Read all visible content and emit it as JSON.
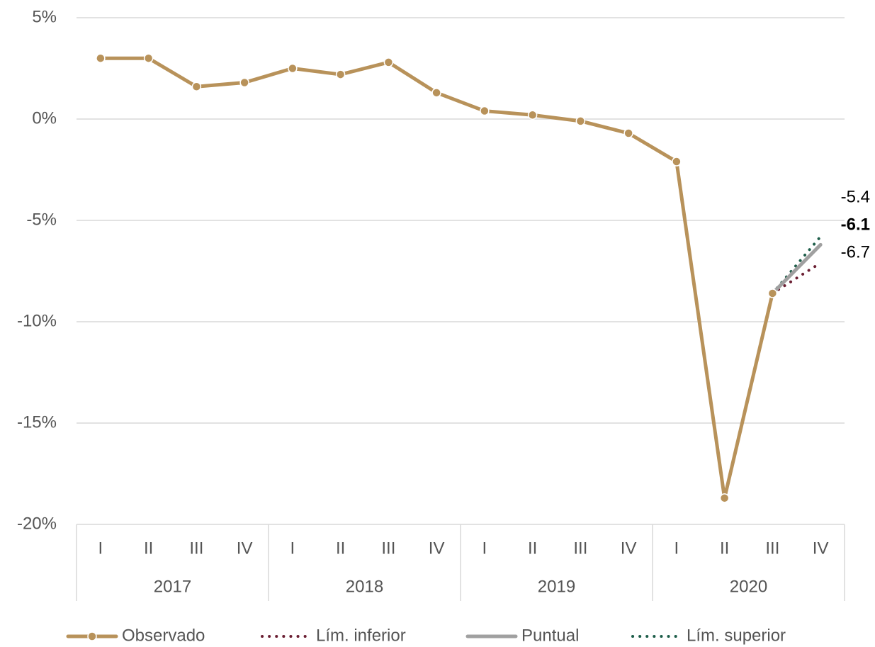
{
  "chart_data": {
    "type": "line",
    "categories": [
      "I",
      "II",
      "III",
      "IV",
      "I",
      "II",
      "III",
      "IV",
      "I",
      "II",
      "III",
      "IV",
      "I",
      "II",
      "III",
      "IV"
    ],
    "years": [
      "2017",
      "2018",
      "2019",
      "2020"
    ],
    "series": [
      {
        "name": "Observado",
        "color": "#b8925a",
        "style": "solid",
        "markers": true,
        "values": [
          3.0,
          3.0,
          1.6,
          1.8,
          2.5,
          2.2,
          2.8,
          1.3,
          0.4,
          0.2,
          -0.1,
          -0.7,
          -2.1,
          -18.7,
          -8.6,
          null
        ]
      },
      {
        "name": "Lím. inferior",
        "color": "#6b1f33",
        "style": "dotted",
        "markers": false,
        "values": [
          null,
          null,
          null,
          null,
          null,
          null,
          null,
          null,
          null,
          null,
          null,
          null,
          null,
          null,
          -8.6,
          -7.1
        ]
      },
      {
        "name": "Puntual",
        "color": "#a0a0a0",
        "style": "solid",
        "markers": false,
        "values": [
          null,
          null,
          null,
          null,
          null,
          null,
          null,
          null,
          null,
          null,
          null,
          null,
          null,
          null,
          -8.6,
          -6.2
        ]
      },
      {
        "name": "Lím. superior",
        "color": "#1e5e4a",
        "style": "dotted",
        "markers": false,
        "values": [
          null,
          null,
          null,
          null,
          null,
          null,
          null,
          null,
          null,
          null,
          null,
          null,
          null,
          null,
          -8.6,
          -5.8
        ]
      }
    ],
    "annotations": [
      "-5.4",
      "-6.1",
      "-6.7"
    ],
    "ylim": [
      -20,
      5
    ],
    "yticks": [
      {
        "value": -20,
        "label": "-20%"
      },
      {
        "value": -15,
        "label": "-15%"
      },
      {
        "value": -10,
        "label": "-10%"
      },
      {
        "value": -5,
        "label": "-5%"
      },
      {
        "value": 0,
        "label": "0%"
      },
      {
        "value": 5,
        "label": "5%"
      }
    ],
    "grid": true
  }
}
